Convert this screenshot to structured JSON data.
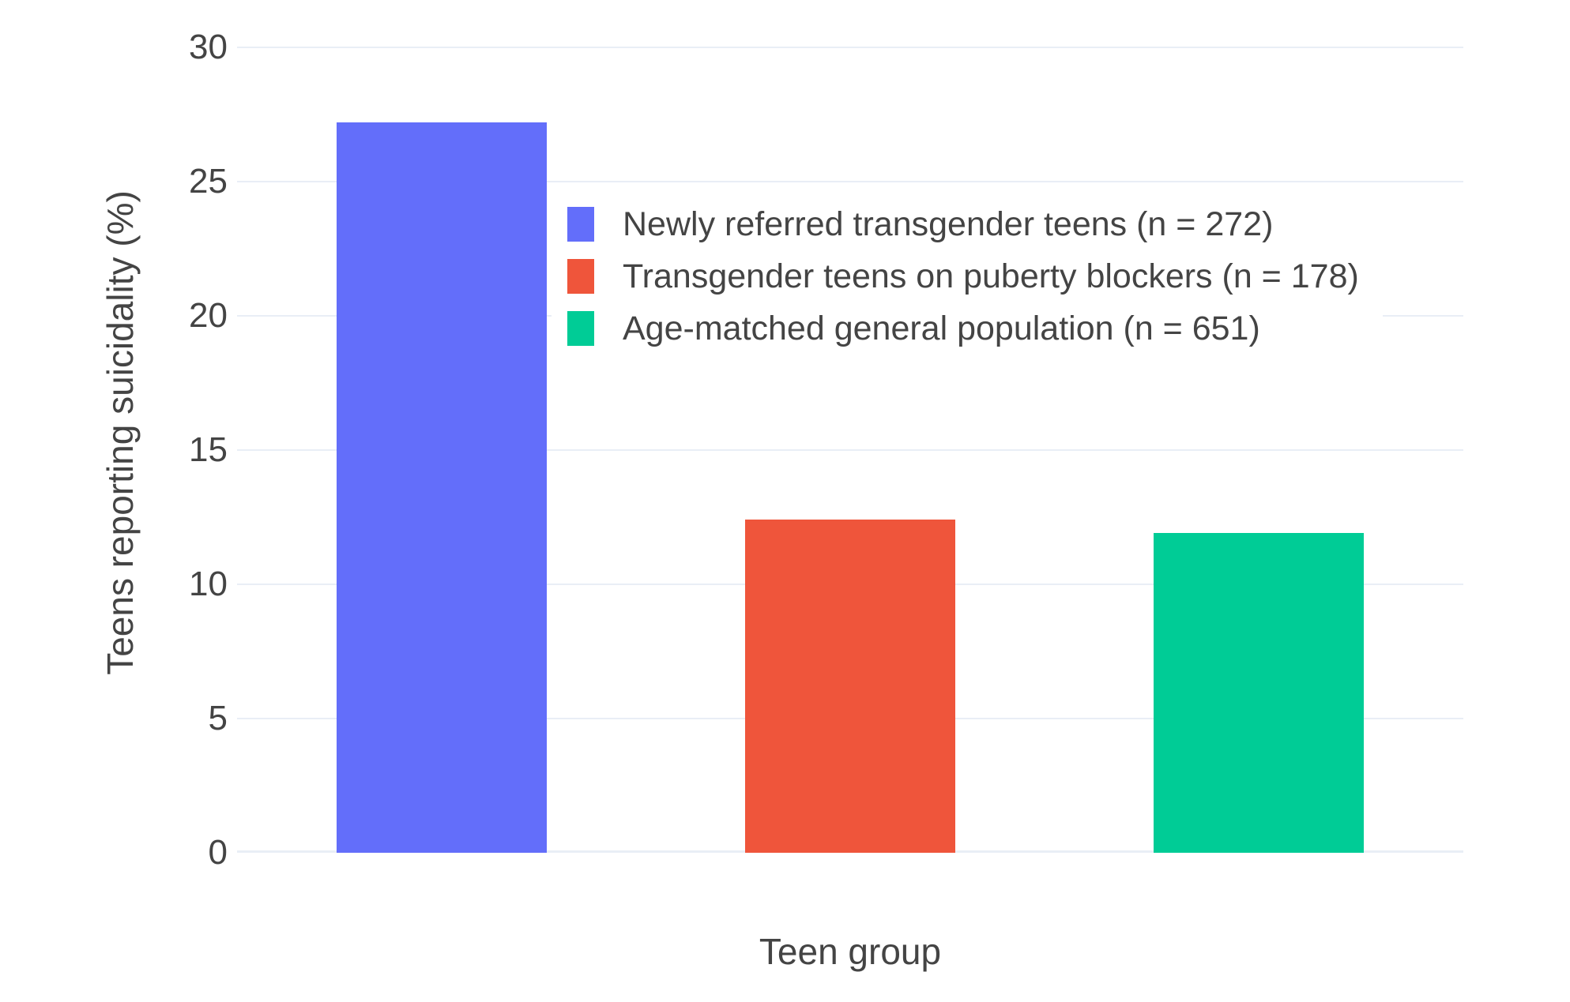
{
  "chart_data": {
    "type": "bar",
    "title": "",
    "xlabel": "Teen group",
    "ylabel": "Teens reporting suicidality (%)",
    "categories": [
      "Newly referred transgender teens (n = 272)",
      "Transgender teens on puberty blockers (n = 178)",
      "Age-matched general population (n = 651)"
    ],
    "values": [
      27.2,
      12.4,
      11.9
    ],
    "bar_colors": [
      "#636EFA",
      "#EF553B",
      "#00CC96"
    ],
    "ylim": [
      0,
      30
    ],
    "yticks": [
      0,
      5,
      10,
      15,
      20,
      25,
      30
    ],
    "grid": true,
    "legend_position": "inside-top-right",
    "legend": [
      {
        "label": "Newly referred transgender teens (n = 272)",
        "color": "#636EFA"
      },
      {
        "label": "Transgender teens on puberty blockers (n = 178)",
        "color": "#EF553B"
      },
      {
        "label": "Age-matched general population (n = 651)",
        "color": "#00CC96"
      }
    ]
  },
  "colors": {
    "background": "#FFFFFF",
    "gridline": "#E9EEF6",
    "text": "#444444"
  }
}
